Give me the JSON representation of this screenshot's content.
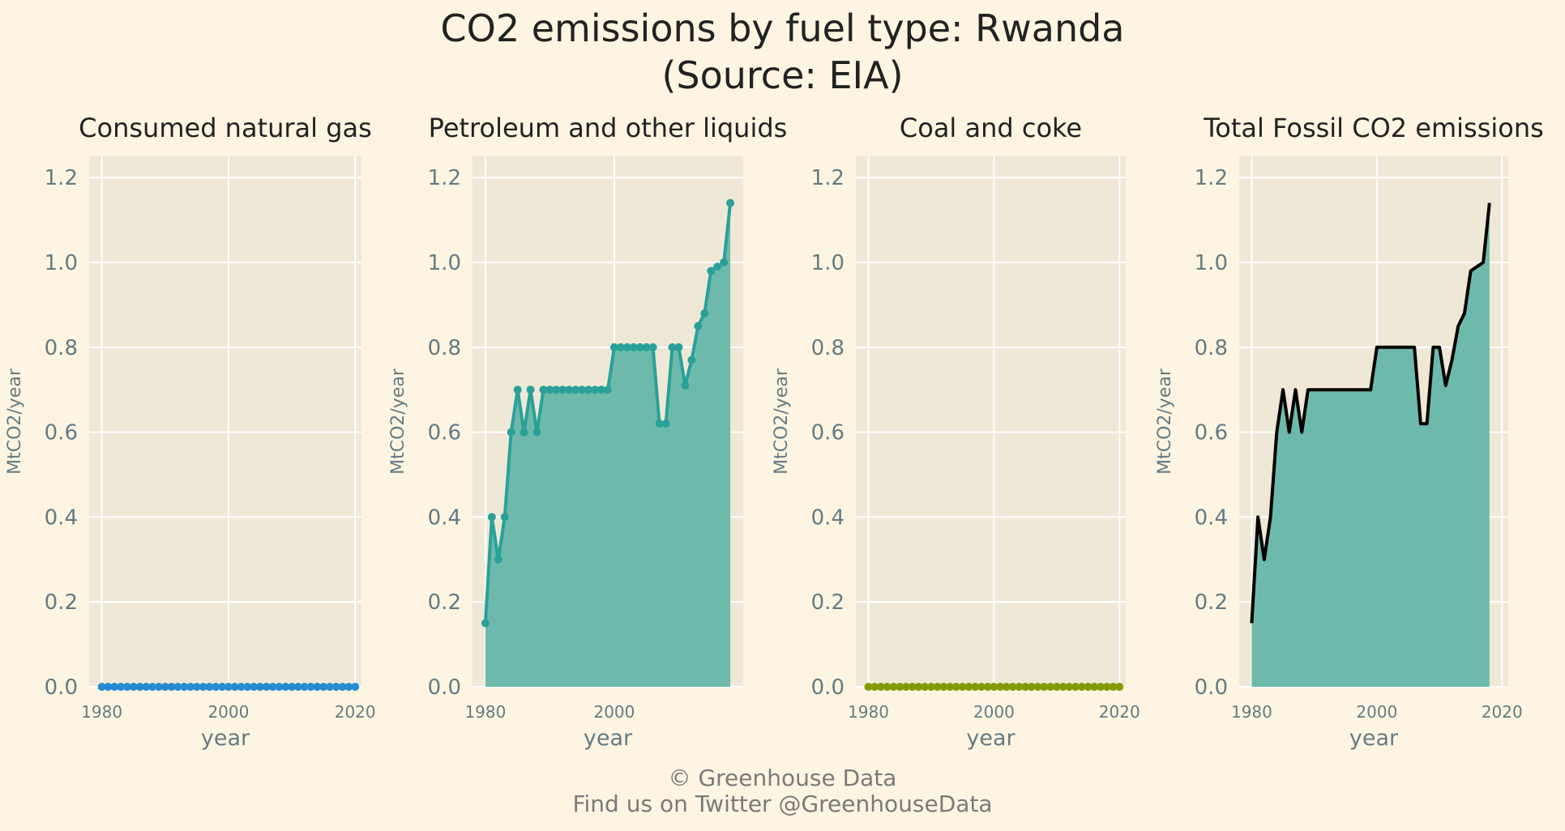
{
  "figure": {
    "title_line1": "CO2 emissions by fuel type: Rwanda",
    "title_line2": "(Source: EIA)",
    "footer_line1": "© Greenhouse Data",
    "footer_line2": "Find us on Twitter @GreenhouseData",
    "background_color": "#fdf5e2",
    "plot_background_color": "#efe8d7",
    "grid_color": "#ffffff",
    "text_color": "#222222",
    "tick_color": "#657b83"
  },
  "chart_data": [
    {
      "type": "line",
      "title": "Consumed natural gas",
      "xlabel": "year",
      "ylabel": "MtCO2/year",
      "xlim": [
        1978,
        2021
      ],
      "ylim": [
        0,
        1.25
      ],
      "x_ticks": [
        1980,
        2000,
        2020
      ],
      "y_ticks": [
        0.0,
        0.2,
        0.4,
        0.6,
        0.8,
        1.0,
        1.2
      ],
      "grid": true,
      "fill": false,
      "markers": true,
      "color": "#268bd2",
      "series": [
        {
          "x": [
            1980,
            1981,
            1982,
            1983,
            1984,
            1985,
            1986,
            1987,
            1988,
            1989,
            1990,
            1991,
            1992,
            1993,
            1994,
            1995,
            1996,
            1997,
            1998,
            1999,
            2000,
            2001,
            2002,
            2003,
            2004,
            2005,
            2006,
            2007,
            2008,
            2009,
            2010,
            2011,
            2012,
            2013,
            2014,
            2015,
            2016,
            2017,
            2018,
            2019,
            2020
          ],
          "values": [
            0,
            0,
            0,
            0,
            0,
            0,
            0,
            0,
            0,
            0,
            0,
            0,
            0,
            0,
            0,
            0,
            0,
            0,
            0,
            0,
            0,
            0,
            0,
            0,
            0,
            0,
            0,
            0,
            0,
            0,
            0,
            0,
            0,
            0,
            0,
            0,
            0,
            0,
            0,
            0,
            0
          ]
        }
      ]
    },
    {
      "type": "area",
      "title": "Petroleum and other liquids",
      "xlabel": "year",
      "ylabel": "MtCO2/year",
      "xlim": [
        1978,
        2020
      ],
      "ylim": [
        0,
        1.25
      ],
      "x_ticks": [
        1980,
        2000
      ],
      "y_ticks": [
        0.0,
        0.2,
        0.4,
        0.6,
        0.8,
        1.0,
        1.2
      ],
      "grid": true,
      "fill": true,
      "markers": true,
      "color": "#2aa198",
      "fill_color": "#6dbaac",
      "series": [
        {
          "x": [
            1980,
            1981,
            1982,
            1983,
            1984,
            1985,
            1986,
            1987,
            1988,
            1989,
            1990,
            1991,
            1992,
            1993,
            1994,
            1995,
            1996,
            1997,
            1998,
            1999,
            2000,
            2001,
            2002,
            2003,
            2004,
            2005,
            2006,
            2007,
            2008,
            2009,
            2010,
            2011,
            2012,
            2013,
            2014,
            2015,
            2016,
            2017,
            2018
          ],
          "values": [
            0.15,
            0.4,
            0.3,
            0.4,
            0.6,
            0.7,
            0.6,
            0.7,
            0.6,
            0.7,
            0.7,
            0.7,
            0.7,
            0.7,
            0.7,
            0.7,
            0.7,
            0.7,
            0.7,
            0.7,
            0.8,
            0.8,
            0.8,
            0.8,
            0.8,
            0.8,
            0.8,
            0.62,
            0.62,
            0.8,
            0.8,
            0.71,
            0.77,
            0.85,
            0.88,
            0.98,
            0.99,
            1.0,
            1.14
          ]
        }
      ]
    },
    {
      "type": "line",
      "title": "Coal and coke",
      "xlabel": "year",
      "ylabel": "MtCO2/year",
      "xlim": [
        1978,
        2021
      ],
      "ylim": [
        0,
        1.25
      ],
      "x_ticks": [
        1980,
        2000,
        2020
      ],
      "y_ticks": [
        0.0,
        0.2,
        0.4,
        0.6,
        0.8,
        1.0,
        1.2
      ],
      "grid": true,
      "fill": false,
      "markers": true,
      "color": "#859900",
      "series": [
        {
          "x": [
            1980,
            1981,
            1982,
            1983,
            1984,
            1985,
            1986,
            1987,
            1988,
            1989,
            1990,
            1991,
            1992,
            1993,
            1994,
            1995,
            1996,
            1997,
            1998,
            1999,
            2000,
            2001,
            2002,
            2003,
            2004,
            2005,
            2006,
            2007,
            2008,
            2009,
            2010,
            2011,
            2012,
            2013,
            2014,
            2015,
            2016,
            2017,
            2018,
            2019,
            2020
          ],
          "values": [
            0,
            0,
            0,
            0,
            0,
            0,
            0,
            0,
            0,
            0,
            0,
            0,
            0,
            0,
            0,
            0,
            0,
            0,
            0,
            0,
            0,
            0,
            0,
            0,
            0,
            0,
            0,
            0,
            0,
            0,
            0,
            0,
            0,
            0,
            0,
            0,
            0,
            0,
            0,
            0,
            0
          ]
        }
      ]
    },
    {
      "type": "area",
      "title": "Total Fossil CO2 emissions",
      "xlabel": "year",
      "ylabel": "MtCO2/year",
      "xlim": [
        1978,
        2021
      ],
      "ylim": [
        0,
        1.25
      ],
      "x_ticks": [
        1980,
        2000,
        2020
      ],
      "y_ticks": [
        0.0,
        0.2,
        0.4,
        0.6,
        0.8,
        1.0,
        1.2
      ],
      "grid": true,
      "fill": true,
      "markers": false,
      "color": "#000000",
      "fill_color": "#6dbaac",
      "series": [
        {
          "x": [
            1980,
            1981,
            1982,
            1983,
            1984,
            1985,
            1986,
            1987,
            1988,
            1989,
            1990,
            1991,
            1992,
            1993,
            1994,
            1995,
            1996,
            1997,
            1998,
            1999,
            2000,
            2001,
            2002,
            2003,
            2004,
            2005,
            2006,
            2007,
            2008,
            2009,
            2010,
            2011,
            2012,
            2013,
            2014,
            2015,
            2016,
            2017,
            2018
          ],
          "values": [
            0.15,
            0.4,
            0.3,
            0.4,
            0.6,
            0.7,
            0.6,
            0.7,
            0.6,
            0.7,
            0.7,
            0.7,
            0.7,
            0.7,
            0.7,
            0.7,
            0.7,
            0.7,
            0.7,
            0.7,
            0.8,
            0.8,
            0.8,
            0.8,
            0.8,
            0.8,
            0.8,
            0.62,
            0.62,
            0.8,
            0.8,
            0.71,
            0.77,
            0.85,
            0.88,
            0.98,
            0.99,
            1.0,
            1.14
          ]
        }
      ]
    }
  ]
}
